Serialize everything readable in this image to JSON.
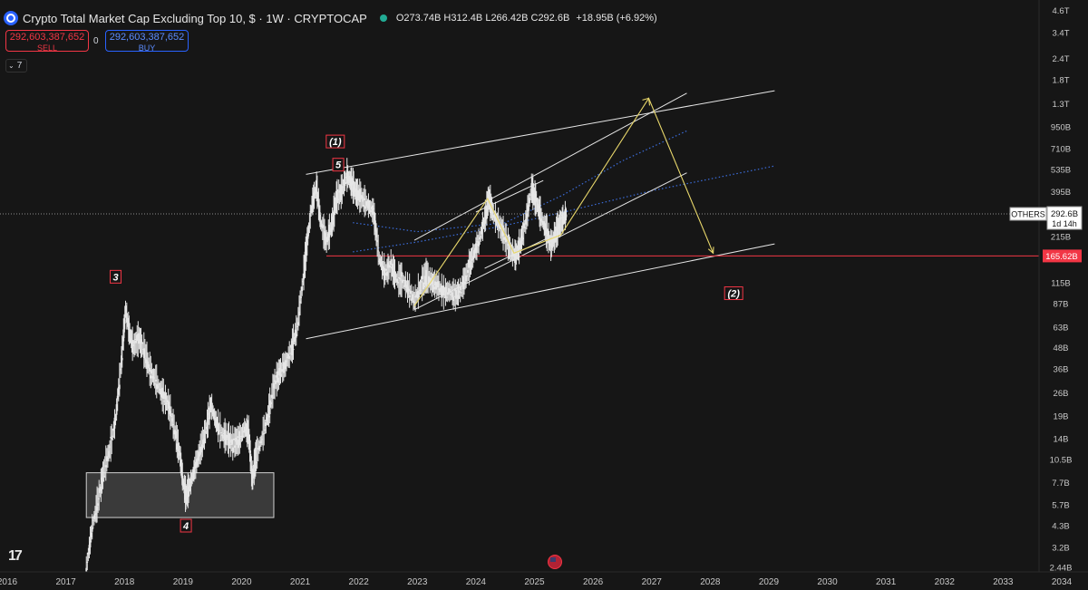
{
  "header": {
    "title": "Crypto Total Market Cap Excluding Top 10, $ · 1W · CRYPTOCAP",
    "ohlc": [
      {
        "key": "O",
        "value": "273.74B"
      },
      {
        "key": "H",
        "value": "312.4B"
      },
      {
        "key": "L",
        "value": "266.42B"
      },
      {
        "key": "C",
        "value": "292.6B"
      }
    ],
    "change": "+18.95B (+6.92%)"
  },
  "trade": {
    "sell_price": "292,603,387,652",
    "sell_label": "SELL",
    "spread": "0",
    "buy_price": "292,603,387,652",
    "buy_label": "BUY"
  },
  "indicators": {
    "count": "7"
  },
  "price_tag": {
    "symbol": "OTHERS",
    "value": "292.6B",
    "countdown": "1d 14h"
  },
  "level_tag": {
    "value": "165.62B"
  },
  "colors": {
    "background": "#161616",
    "candles": "#e6e6e6",
    "level": "#f23645",
    "projection": "#e8d76b",
    "channel": "#e6e6e6",
    "ma": "#3b6cd9"
  },
  "icons": [
    "chart-logo-icon",
    "symbol-icon",
    "us-flag-icon",
    "chevron-down-icon"
  ],
  "chart_data": {
    "type": "line",
    "scale": "log",
    "grid": false,
    "ylim": [
      2300000000.0,
      4800000000000.0
    ],
    "xlim": [
      2016.0,
      2034.0
    ],
    "y_ticks": [
      {
        "label": "4.6T",
        "v": 4600000000000.0
      },
      {
        "label": "3.4T",
        "v": 3400000000000.0
      },
      {
        "label": "2.4T",
        "v": 2400000000000.0
      },
      {
        "label": "1.8T",
        "v": 1800000000000.0
      },
      {
        "label": "1.3T",
        "v": 1300000000000.0
      },
      {
        "label": "950B",
        "v": 950000000000.0
      },
      {
        "label": "710B",
        "v": 710000000000.0
      },
      {
        "label": "535B",
        "v": 535000000000.0
      },
      {
        "label": "395B",
        "v": 395000000000.0
      },
      {
        "label": "215B",
        "v": 215000000000.0
      },
      {
        "label": "115B",
        "v": 115000000000.0
      },
      {
        "label": "87B",
        "v": 87000000000.0
      },
      {
        "label": "63B",
        "v": 63000000000.0
      },
      {
        "label": "48B",
        "v": 48000000000.0
      },
      {
        "label": "36B",
        "v": 36000000000.0
      },
      {
        "label": "26B",
        "v": 26000000000.0
      },
      {
        "label": "19B",
        "v": 19000000000.0
      },
      {
        "label": "14B",
        "v": 14000000000.0
      },
      {
        "label": "10.5B",
        "v": 10500000000.0
      },
      {
        "label": "7.7B",
        "v": 7700000000.0
      },
      {
        "label": "5.7B",
        "v": 5700000000.0
      },
      {
        "label": "4.3B",
        "v": 4300000000.0
      },
      {
        "label": "3.2B",
        "v": 3200000000.0
      },
      {
        "label": "2.44B",
        "v": 2440000000.0
      }
    ],
    "x_ticks": [
      "2016",
      "2017",
      "2018",
      "2019",
      "2020",
      "2021",
      "2022",
      "2023",
      "2024",
      "2025",
      "2026",
      "2027",
      "2028",
      "2029",
      "2030",
      "2031",
      "2032",
      "2033",
      "2034"
    ],
    "current_price": 292600000000.0,
    "level_price": 165620000000.0,
    "price_series": [
      [
        2017.35,
        2400000000.0
      ],
      [
        2017.45,
        4200000000.0
      ],
      [
        2017.55,
        6000000000.0
      ],
      [
        2017.65,
        9000000000.0
      ],
      [
        2017.75,
        12000000000.0
      ],
      [
        2017.85,
        18000000000.0
      ],
      [
        2017.95,
        40000000000.0
      ],
      [
        2018.02,
        80000000000.0
      ],
      [
        2018.08,
        60000000000.0
      ],
      [
        2018.15,
        48000000000.0
      ],
      [
        2018.25,
        54000000000.0
      ],
      [
        2018.35,
        44000000000.0
      ],
      [
        2018.45,
        34000000000.0
      ],
      [
        2018.55,
        30000000000.0
      ],
      [
        2018.65,
        25000000000.0
      ],
      [
        2018.75,
        22000000000.0
      ],
      [
        2018.85,
        16000000000.0
      ],
      [
        2018.95,
        11000000000.0
      ],
      [
        2019.0,
        7800000000.0
      ],
      [
        2019.05,
        6300000000.0
      ],
      [
        2019.12,
        7400000000.0
      ],
      [
        2019.2,
        9300000000.0
      ],
      [
        2019.3,
        12000000000.0
      ],
      [
        2019.4,
        16000000000.0
      ],
      [
        2019.48,
        22000000000.0
      ],
      [
        2019.55,
        18000000000.0
      ],
      [
        2019.65,
        15000000000.0
      ],
      [
        2019.75,
        14000000000.0
      ],
      [
        2019.85,
        13000000000.0
      ],
      [
        2019.95,
        13500000000.0
      ],
      [
        2020.05,
        16000000000.0
      ],
      [
        2020.12,
        15000000000.0
      ],
      [
        2020.18,
        8000000000.0
      ],
      [
        2020.25,
        11000000000.0
      ],
      [
        2020.35,
        14000000000.0
      ],
      [
        2020.45,
        19000000000.0
      ],
      [
        2020.55,
        28000000000.0
      ],
      [
        2020.65,
        34000000000.0
      ],
      [
        2020.75,
        38000000000.0
      ],
      [
        2020.85,
        46000000000.0
      ],
      [
        2020.95,
        63000000000.0
      ],
      [
        2021.05,
        120000000000.0
      ],
      [
        2021.12,
        200000000000.0
      ],
      [
        2021.2,
        330000000000.0
      ],
      [
        2021.28,
        420000000000.0
      ],
      [
        2021.35,
        260000000000.0
      ],
      [
        2021.45,
        200000000000.0
      ],
      [
        2021.55,
        260000000000.0
      ],
      [
        2021.62,
        360000000000.0
      ],
      [
        2021.7,
        390000000000.0
      ],
      [
        2021.8,
        490000000000.0
      ],
      [
        2021.88,
        440000000000.0
      ],
      [
        2021.95,
        390000000000.0
      ],
      [
        2022.05,
        360000000000.0
      ],
      [
        2022.15,
        330000000000.0
      ],
      [
        2022.25,
        300000000000.0
      ],
      [
        2022.35,
        160000000000.0
      ],
      [
        2022.45,
        130000000000.0
      ],
      [
        2022.55,
        145000000000.0
      ],
      [
        2022.65,
        120000000000.0
      ],
      [
        2022.75,
        118000000000.0
      ],
      [
        2022.85,
        105000000000.0
      ],
      [
        2022.95,
        90000000000.0
      ],
      [
        2023.05,
        108000000000.0
      ],
      [
        2023.15,
        125000000000.0
      ],
      [
        2023.25,
        115000000000.0
      ],
      [
        2023.35,
        110000000000.0
      ],
      [
        2023.45,
        100000000000.0
      ],
      [
        2023.55,
        102000000000.0
      ],
      [
        2023.65,
        96000000000.0
      ],
      [
        2023.75,
        105000000000.0
      ],
      [
        2023.85,
        130000000000.0
      ],
      [
        2023.95,
        165000000000.0
      ],
      [
        2024.05,
        200000000000.0
      ],
      [
        2024.15,
        270000000000.0
      ],
      [
        2024.22,
        360000000000.0
      ],
      [
        2024.3,
        290000000000.0
      ],
      [
        2024.4,
        250000000000.0
      ],
      [
        2024.5,
        210000000000.0
      ],
      [
        2024.6,
        175000000000.0
      ],
      [
        2024.68,
        165000000000.0
      ],
      [
        2024.75,
        190000000000.0
      ],
      [
        2024.85,
        260000000000.0
      ],
      [
        2024.95,
        410000000000.0
      ],
      [
        2025.02,
        350000000000.0
      ],
      [
        2025.1,
        290000000000.0
      ],
      [
        2025.2,
        230000000000.0
      ],
      [
        2025.28,
        190000000000.0
      ],
      [
        2025.35,
        215000000000.0
      ],
      [
        2025.42,
        250000000000.0
      ],
      [
        2025.5,
        274000000000.0
      ],
      [
        2025.55,
        292600000000.0
      ]
    ],
    "channels": [
      {
        "name": "channel-top",
        "from": [
          2021.1,
          500000000000.0
        ],
        "to": [
          2029.1,
          1550000000000.0
        ]
      },
      {
        "name": "channel-bottom",
        "from": [
          2021.1,
          54000000000.0
        ],
        "to": [
          2029.1,
          195000000000.0
        ]
      },
      {
        "name": "inner-top-a",
        "from": [
          2022.95,
          205000000000.0
        ],
        "to": [
          2027.6,
          1500000000000.0
        ]
      },
      {
        "name": "inner-bottom-a",
        "from": [
          2022.95,
          80000000000.0
        ],
        "to": [
          2027.6,
          510000000000.0
        ]
      },
      {
        "name": "inner-top-b",
        "from": [
          2024.0,
          300000000000.0
        ],
        "to": [
          2025.15,
          460000000000.0
        ]
      },
      {
        "name": "inner-bottom-b",
        "from": [
          2024.15,
          140000000000.0
        ],
        "to": [
          2025.45,
          230000000000.0
        ]
      }
    ],
    "ma_lines": [
      {
        "name": "ma-short",
        "points": [
          [
            2021.9,
            260000000000.0
          ],
          [
            2023.0,
            230000000000.0
          ],
          [
            2024.5,
            260000000000.0
          ],
          [
            2025.5,
            380000000000.0
          ],
          [
            2026.5,
            600000000000.0
          ],
          [
            2027.6,
            900000000000.0
          ]
        ]
      },
      {
        "name": "ma-long",
        "points": [
          [
            2021.9,
            175000000000.0
          ],
          [
            2023.0,
            200000000000.0
          ],
          [
            2024.5,
            250000000000.0
          ],
          [
            2025.5,
            300000000000.0
          ],
          [
            2027.0,
            400000000000.0
          ],
          [
            2029.1,
            560000000000.0
          ]
        ]
      }
    ],
    "projection": [
      [
        2022.95,
        84000000000.0
      ],
      [
        2024.2,
        360000000000.0
      ],
      [
        2024.65,
        172000000000.0
      ],
      [
        2025.45,
        220000000000.0
      ],
      [
        2026.95,
        1400000000000.0
      ],
      [
        2028.05,
        172000000000.0
      ]
    ],
    "boxes": [
      {
        "name": "accumulation-box",
        "from": [
          2017.35,
          4800000000.0
        ],
        "to": [
          2020.55,
          8800000000.0
        ]
      }
    ],
    "labels": [
      {
        "text": "(1)",
        "x": 2021.6,
        "y": 780000000000.0
      },
      {
        "text": "5",
        "x": 2021.65,
        "y": 570000000000.0
      },
      {
        "text": "3",
        "x": 2017.85,
        "y": 125000000000.0
      },
      {
        "text": "4",
        "x": 2019.05,
        "y": 4300000000.0
      },
      {
        "text": "(2)",
        "x": 2028.4,
        "y": 100000000000.0
      }
    ]
  }
}
